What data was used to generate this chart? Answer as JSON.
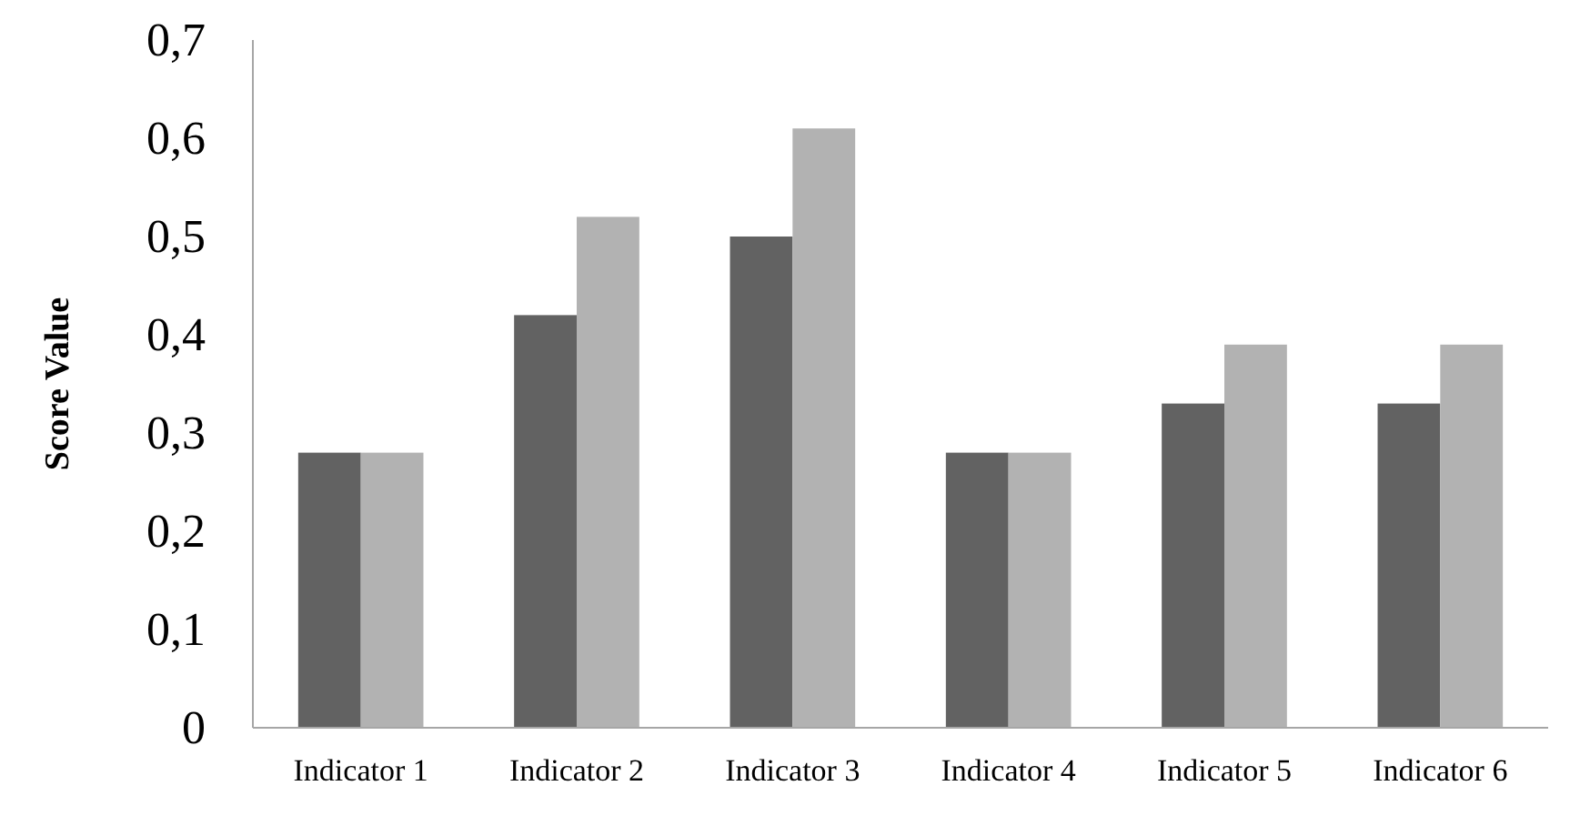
{
  "chart_data": {
    "type": "bar",
    "ylabel": "Score Value",
    "categories": [
      "Indicator 1",
      "Indicator 2",
      "Indicator 3",
      "Indicator 4",
      "Indicator 5",
      "Indicator 6"
    ],
    "series": [
      {
        "color": "#626262",
        "values": [
          0.28,
          0.42,
          0.5,
          0.28,
          0.33,
          0.33
        ]
      },
      {
        "color": "#b2b2b2",
        "values": [
          0.28,
          0.52,
          0.61,
          0.28,
          0.39,
          0.39
        ]
      }
    ],
    "ylim": [
      0,
      0.7
    ],
    "yticks": [
      {
        "value": 0,
        "label": "0"
      },
      {
        "value": 0.1,
        "label": "0,1"
      },
      {
        "value": 0.2,
        "label": "0,2"
      },
      {
        "value": 0.3,
        "label": "0,3"
      },
      {
        "value": 0.4,
        "label": "0,4"
      },
      {
        "value": 0.5,
        "label": "0,5"
      },
      {
        "value": 0.6,
        "label": "0,6"
      },
      {
        "value": 0.7,
        "label": "0,7"
      }
    ],
    "grid": false
  }
}
